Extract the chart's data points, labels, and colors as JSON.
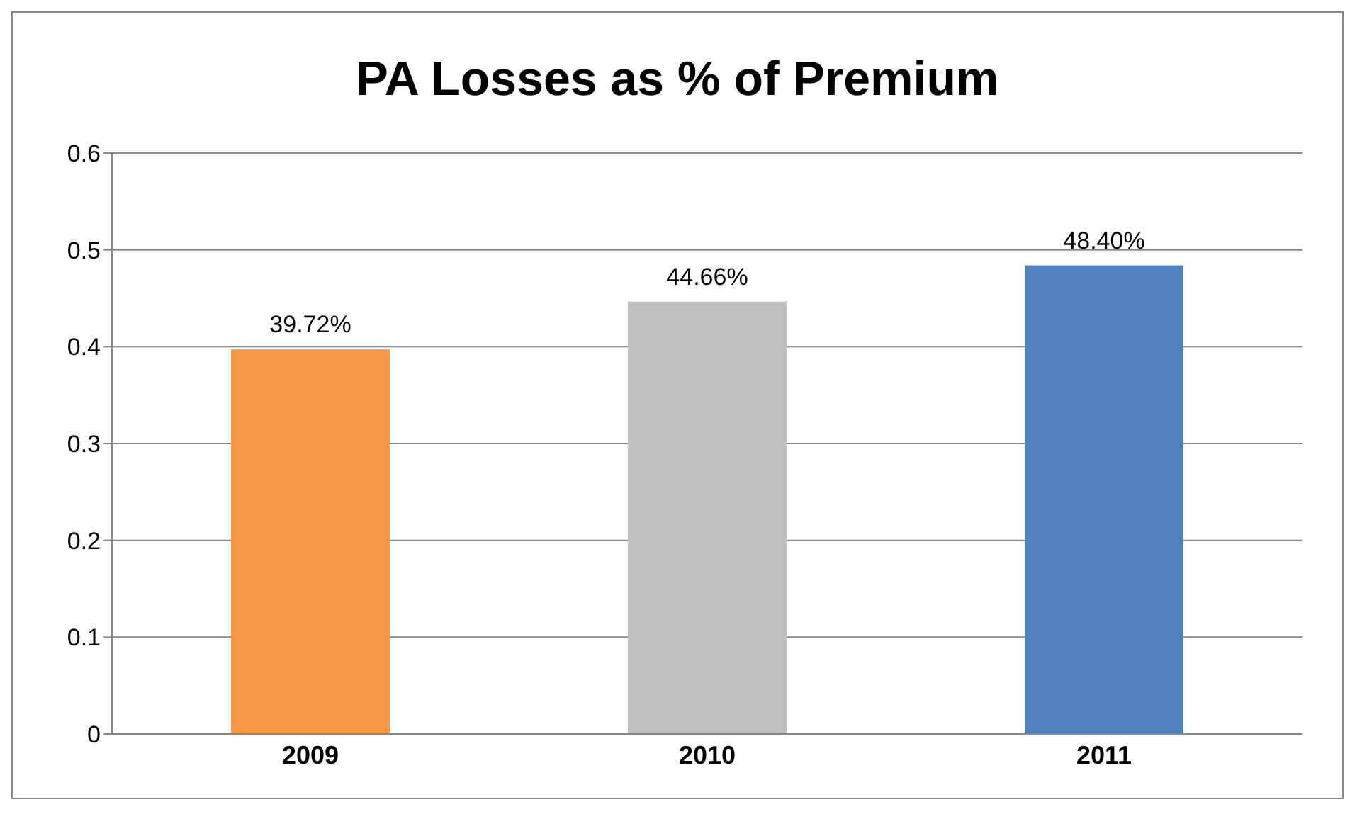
{
  "chart_data": {
    "type": "bar",
    "title": "PA Losses as % of Premium",
    "categories": [
      "2009",
      "2010",
      "2011"
    ],
    "values": [
      0.3972,
      0.4466,
      0.484
    ],
    "value_labels": [
      "39.72%",
      "44.66%",
      "48.40%"
    ],
    "colors": [
      "#f79646",
      "#bfbfbf",
      "#4f81bd"
    ],
    "ylim": [
      0,
      0.6
    ],
    "yticks": [
      0,
      0.1,
      0.2,
      0.3,
      0.4,
      0.5,
      0.6
    ],
    "grid": "y"
  }
}
